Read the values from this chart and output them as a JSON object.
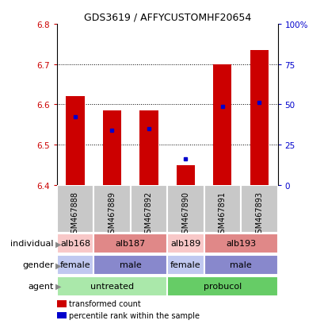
{
  "title": "GDS3619 / AFFYCUSTOMHF20654",
  "samples": [
    "GSM467888",
    "GSM467889",
    "GSM467892",
    "GSM467890",
    "GSM467891",
    "GSM467893"
  ],
  "red_bottom": [
    6.4,
    6.4,
    6.4,
    6.4,
    6.4,
    6.4
  ],
  "red_top": [
    6.62,
    6.585,
    6.585,
    6.45,
    6.7,
    6.735
  ],
  "blue_val": [
    6.57,
    6.535,
    6.54,
    6.465,
    6.595,
    6.605
  ],
  "ylim": [
    6.4,
    6.8
  ],
  "yticks_left": [
    6.4,
    6.5,
    6.6,
    6.7,
    6.8
  ],
  "yticks_right": [
    0,
    25,
    50,
    75,
    100
  ],
  "ytick_labels_right": [
    "0",
    "25",
    "50",
    "75",
    "100%"
  ],
  "red_color": "#cc0000",
  "blue_color": "#0000cc",
  "bar_width": 0.5,
  "agent_labels": [
    [
      "untreated",
      0,
      3
    ],
    [
      "probucol",
      3,
      6
    ]
  ],
  "agent_color_untreated": "#aae8aa",
  "agent_color_probucol": "#66cc66",
  "gender_groups": [
    {
      "label": "female",
      "start": 0,
      "end": 1,
      "color": "#c0c8f0"
    },
    {
      "label": "male",
      "start": 1,
      "end": 3,
      "color": "#8888cc"
    },
    {
      "label": "female",
      "start": 3,
      "end": 4,
      "color": "#c0c8f0"
    },
    {
      "label": "male",
      "start": 4,
      "end": 6,
      "color": "#8888cc"
    }
  ],
  "individual_groups": [
    {
      "label": "alb168",
      "start": 0,
      "end": 1,
      "color": "#f8c8c8"
    },
    {
      "label": "alb187",
      "start": 1,
      "end": 3,
      "color": "#e08888"
    },
    {
      "label": "alb189",
      "start": 3,
      "end": 4,
      "color": "#f8c8c8"
    },
    {
      "label": "alb193",
      "start": 4,
      "end": 6,
      "color": "#e08888"
    }
  ],
  "legend_red": "transformed count",
  "legend_blue": "percentile rank within the sample",
  "sample_box_color": "#c8c8c8",
  "row_labels": [
    "agent",
    "gender",
    "individual"
  ],
  "row_label_fontsize": 8,
  "annotation_fontsize": 8,
  "sample_fontsize": 7
}
